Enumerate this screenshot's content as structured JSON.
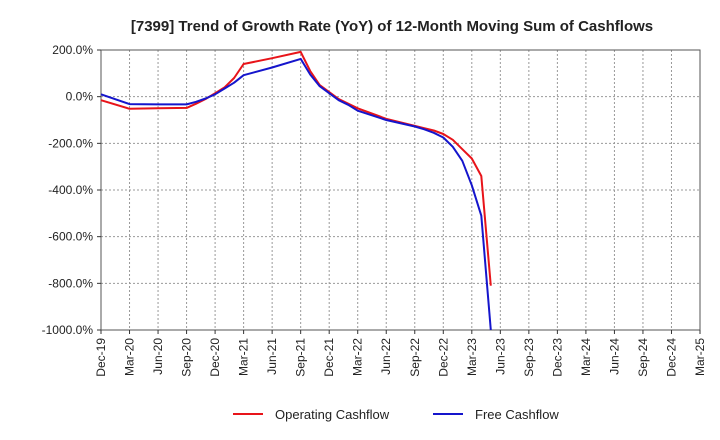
{
  "chart_data": {
    "type": "line",
    "title": "[7399]  Trend of Growth Rate (YoY) of 12-Month Moving Sum of Cashflows",
    "xlabel": "",
    "ylabel": "",
    "x": [
      "Dec-19",
      "Mar-20",
      "Jun-20",
      "Sep-20",
      "Dec-20",
      "Mar-21",
      "Jun-21",
      "Sep-21",
      "Dec-21",
      "Mar-22",
      "Jun-22",
      "Sep-22",
      "Dec-22",
      "Mar-23",
      "Jun-23",
      "Sep-23",
      "Dec-23",
      "Mar-24",
      "Jun-24",
      "Sep-24",
      "Dec-24",
      "Mar-25"
    ],
    "ylim": [
      -1000,
      200
    ],
    "yticks": [
      200,
      0,
      -200,
      -400,
      -600,
      -800,
      -1000
    ],
    "ytick_labels": [
      "200.0%",
      "0.0%",
      "-200.0%",
      "-400.0%",
      "-600.0%",
      "-800.0%",
      "-1000.0%"
    ],
    "grid": true,
    "legend_position": "bottom",
    "series": [
      {
        "name": "Operating Cashflow",
        "color": "#e8141a",
        "points": [
          [
            "Dec-19",
            -15
          ],
          [
            "Mar-20",
            -52
          ],
          [
            "Jun-20",
            -50
          ],
          [
            "Sep-20",
            -48
          ],
          [
            "Oct-20",
            -30
          ],
          [
            "Nov-20",
            -10
          ],
          [
            "Dec-20",
            15
          ],
          [
            "Jan-21",
            40
          ],
          [
            "Feb-21",
            80
          ],
          [
            "Mar-21",
            140
          ],
          [
            "Jun-21",
            165
          ],
          [
            "Sep-21",
            192
          ],
          [
            "Oct-21",
            110
          ],
          [
            "Nov-21",
            50
          ],
          [
            "Dec-21",
            20
          ],
          [
            "Jan-22",
            -10
          ],
          [
            "Feb-22",
            -30
          ],
          [
            "Mar-22",
            -50
          ],
          [
            "Jun-22",
            -95
          ],
          [
            "Sep-22",
            -125
          ],
          [
            "Oct-22",
            -135
          ],
          [
            "Nov-22",
            -145
          ],
          [
            "Dec-22",
            -160
          ],
          [
            "Jan-23",
            -185
          ],
          [
            "Feb-23",
            -225
          ],
          [
            "Mar-23",
            -265
          ],
          [
            "Apr-23",
            -340
          ],
          [
            "May-23",
            -810
          ]
        ]
      },
      {
        "name": "Free Cashflow",
        "color": "#1515cc",
        "points": [
          [
            "Dec-19",
            10
          ],
          [
            "Mar-20",
            -32
          ],
          [
            "Jun-20",
            -33
          ],
          [
            "Sep-20",
            -33
          ],
          [
            "Oct-20",
            -22
          ],
          [
            "Nov-20",
            -8
          ],
          [
            "Dec-20",
            10
          ],
          [
            "Jan-21",
            35
          ],
          [
            "Feb-21",
            60
          ],
          [
            "Mar-21",
            92
          ],
          [
            "Jun-21",
            125
          ],
          [
            "Sep-21",
            162
          ],
          [
            "Oct-21",
            95
          ],
          [
            "Nov-21",
            45
          ],
          [
            "Dec-21",
            15
          ],
          [
            "Jan-22",
            -15
          ],
          [
            "Feb-22",
            -35
          ],
          [
            "Mar-22",
            -60
          ],
          [
            "Jun-22",
            -100
          ],
          [
            "Sep-22",
            -128
          ],
          [
            "Oct-22",
            -140
          ],
          [
            "Nov-22",
            -155
          ],
          [
            "Dec-22",
            -175
          ],
          [
            "Jan-23",
            -215
          ],
          [
            "Feb-23",
            -275
          ],
          [
            "Mar-23",
            -380
          ],
          [
            "Apr-23",
            -510
          ],
          [
            "May-23",
            -1000
          ]
        ]
      }
    ]
  }
}
